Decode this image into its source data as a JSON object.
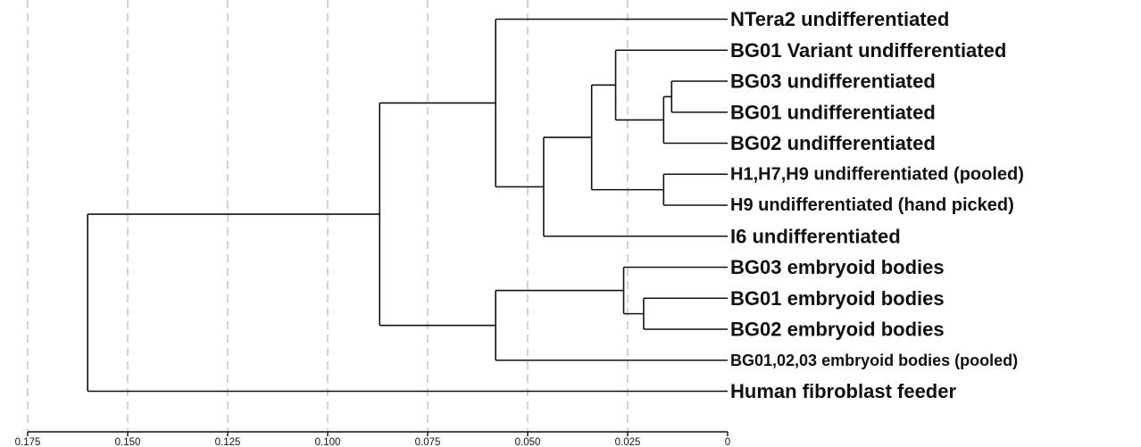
{
  "chart_data": {
    "type": "dendrogram",
    "orientation": "leaves-right",
    "x_axis": {
      "ticks": [
        "0.175",
        "0.150",
        "0.125",
        "0.100",
        "0.075",
        "0.050",
        "0.025",
        "0"
      ],
      "tick_values": [
        0.175,
        0.15,
        0.125,
        0.1,
        0.075,
        0.05,
        0.025,
        0
      ],
      "range": [
        0.175,
        0
      ],
      "grid": "dashed-vertical"
    },
    "leaves": [
      {
        "label": "NTera2 undifferentiated",
        "style": "large"
      },
      {
        "label": "BG01 Variant undifferentiated",
        "style": "large"
      },
      {
        "label": "BG03 undifferentiated",
        "style": "large"
      },
      {
        "label": "BG01 undifferentiated",
        "style": "large"
      },
      {
        "label": "BG02 undifferentiated",
        "style": "large"
      },
      {
        "label": "H1,H7,H9 undifferentiated (pooled)",
        "style": "medium"
      },
      {
        "label": "H9 undifferentiated (hand picked)",
        "style": "medium"
      },
      {
        "label": "I6 undifferentiated",
        "style": "large"
      },
      {
        "label": "BG03 embryoid bodies",
        "style": "large"
      },
      {
        "label": "BG01 embryoid bodies",
        "style": "large"
      },
      {
        "label": "BG02 embryoid bodies",
        "style": "large"
      },
      {
        "label": "BG01,02,03 embryoid bodies (pooled)",
        "style": "small"
      },
      {
        "label": "Human fibroblast feeder",
        "style": "large"
      }
    ],
    "merges": [
      {
        "children": [
          3,
          2
        ],
        "height": 0.014
      },
      {
        "children": [
          13,
          4
        ],
        "height": 0.016
      },
      {
        "children": [
          1,
          14
        ],
        "height": 0.028
      },
      {
        "children": [
          5,
          6
        ],
        "height": 0.016
      },
      {
        "children": [
          15,
          16
        ],
        "height": 0.034
      },
      {
        "children": [
          17,
          7
        ],
        "height": 0.046
      },
      {
        "children": [
          0,
          18
        ],
        "height": 0.058
      },
      {
        "children": [
          9,
          10
        ],
        "height": 0.021
      },
      {
        "children": [
          8,
          20
        ],
        "height": 0.026
      },
      {
        "children": [
          21,
          11
        ],
        "height": 0.058
      },
      {
        "children": [
          19,
          22
        ],
        "height": 0.087
      },
      {
        "children": [
          23,
          12
        ],
        "height": 0.16
      }
    ]
  }
}
